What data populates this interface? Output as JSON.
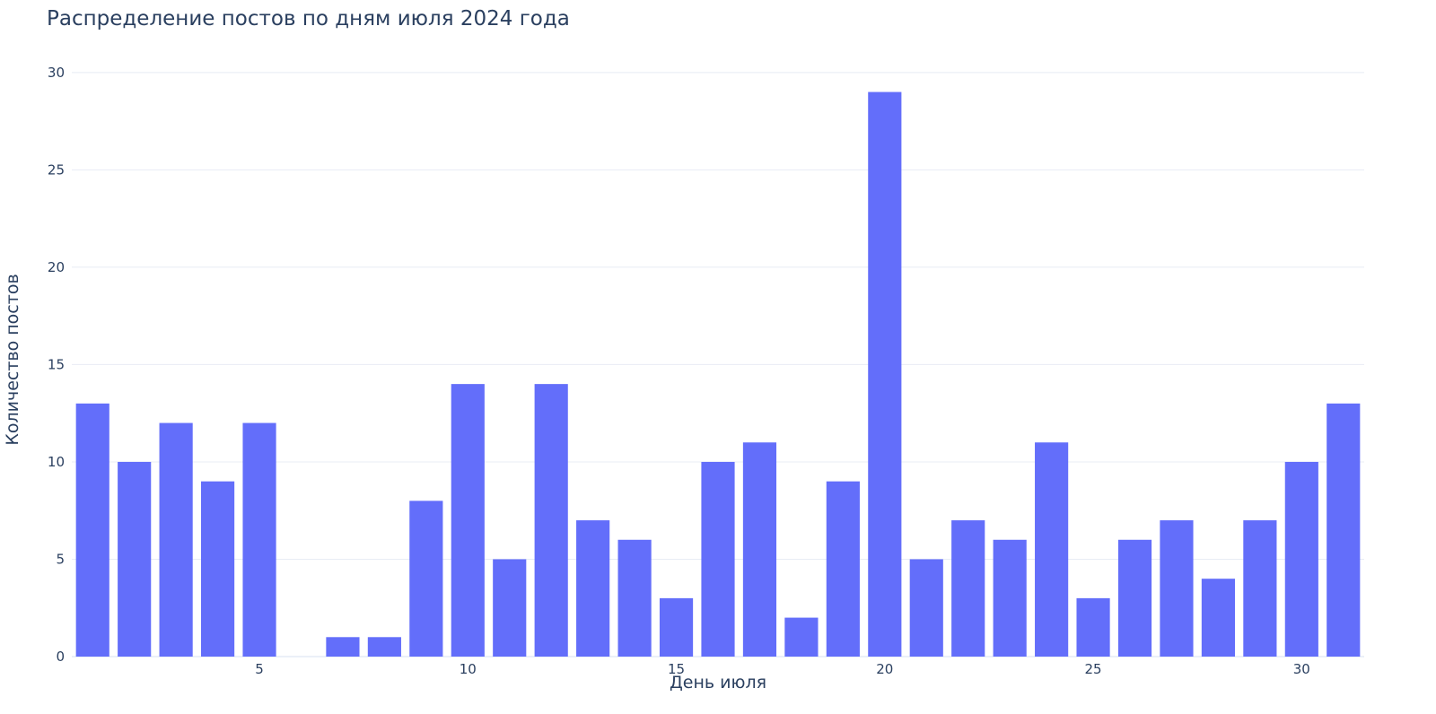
{
  "chart_data": {
    "type": "bar",
    "title": "Распределение постов по дням июля 2024 года",
    "xlabel": "День июля",
    "ylabel": "Количество постов",
    "x": [
      1,
      2,
      3,
      4,
      5,
      6,
      7,
      8,
      9,
      10,
      11,
      12,
      13,
      14,
      15,
      16,
      17,
      18,
      19,
      20,
      21,
      22,
      23,
      24,
      25,
      26,
      27,
      28,
      29,
      30,
      31
    ],
    "values": [
      13,
      10,
      12,
      9,
      12,
      0,
      1,
      1,
      8,
      14,
      5,
      14,
      7,
      6,
      3,
      10,
      11,
      2,
      9,
      29,
      5,
      7,
      6,
      11,
      3,
      6,
      7,
      4,
      7,
      10,
      13
    ],
    "xlim": [
      0.5,
      31.5
    ],
    "ylim": [
      0,
      30.5
    ],
    "x_ticks": [
      5,
      10,
      15,
      20,
      25,
      30
    ],
    "y_ticks": [
      0,
      5,
      10,
      15,
      20,
      25,
      30
    ],
    "grid": true,
    "bar_color": "#636efa",
    "grid_color": "#e8ecf4",
    "text_color": "#2a3f5f"
  }
}
